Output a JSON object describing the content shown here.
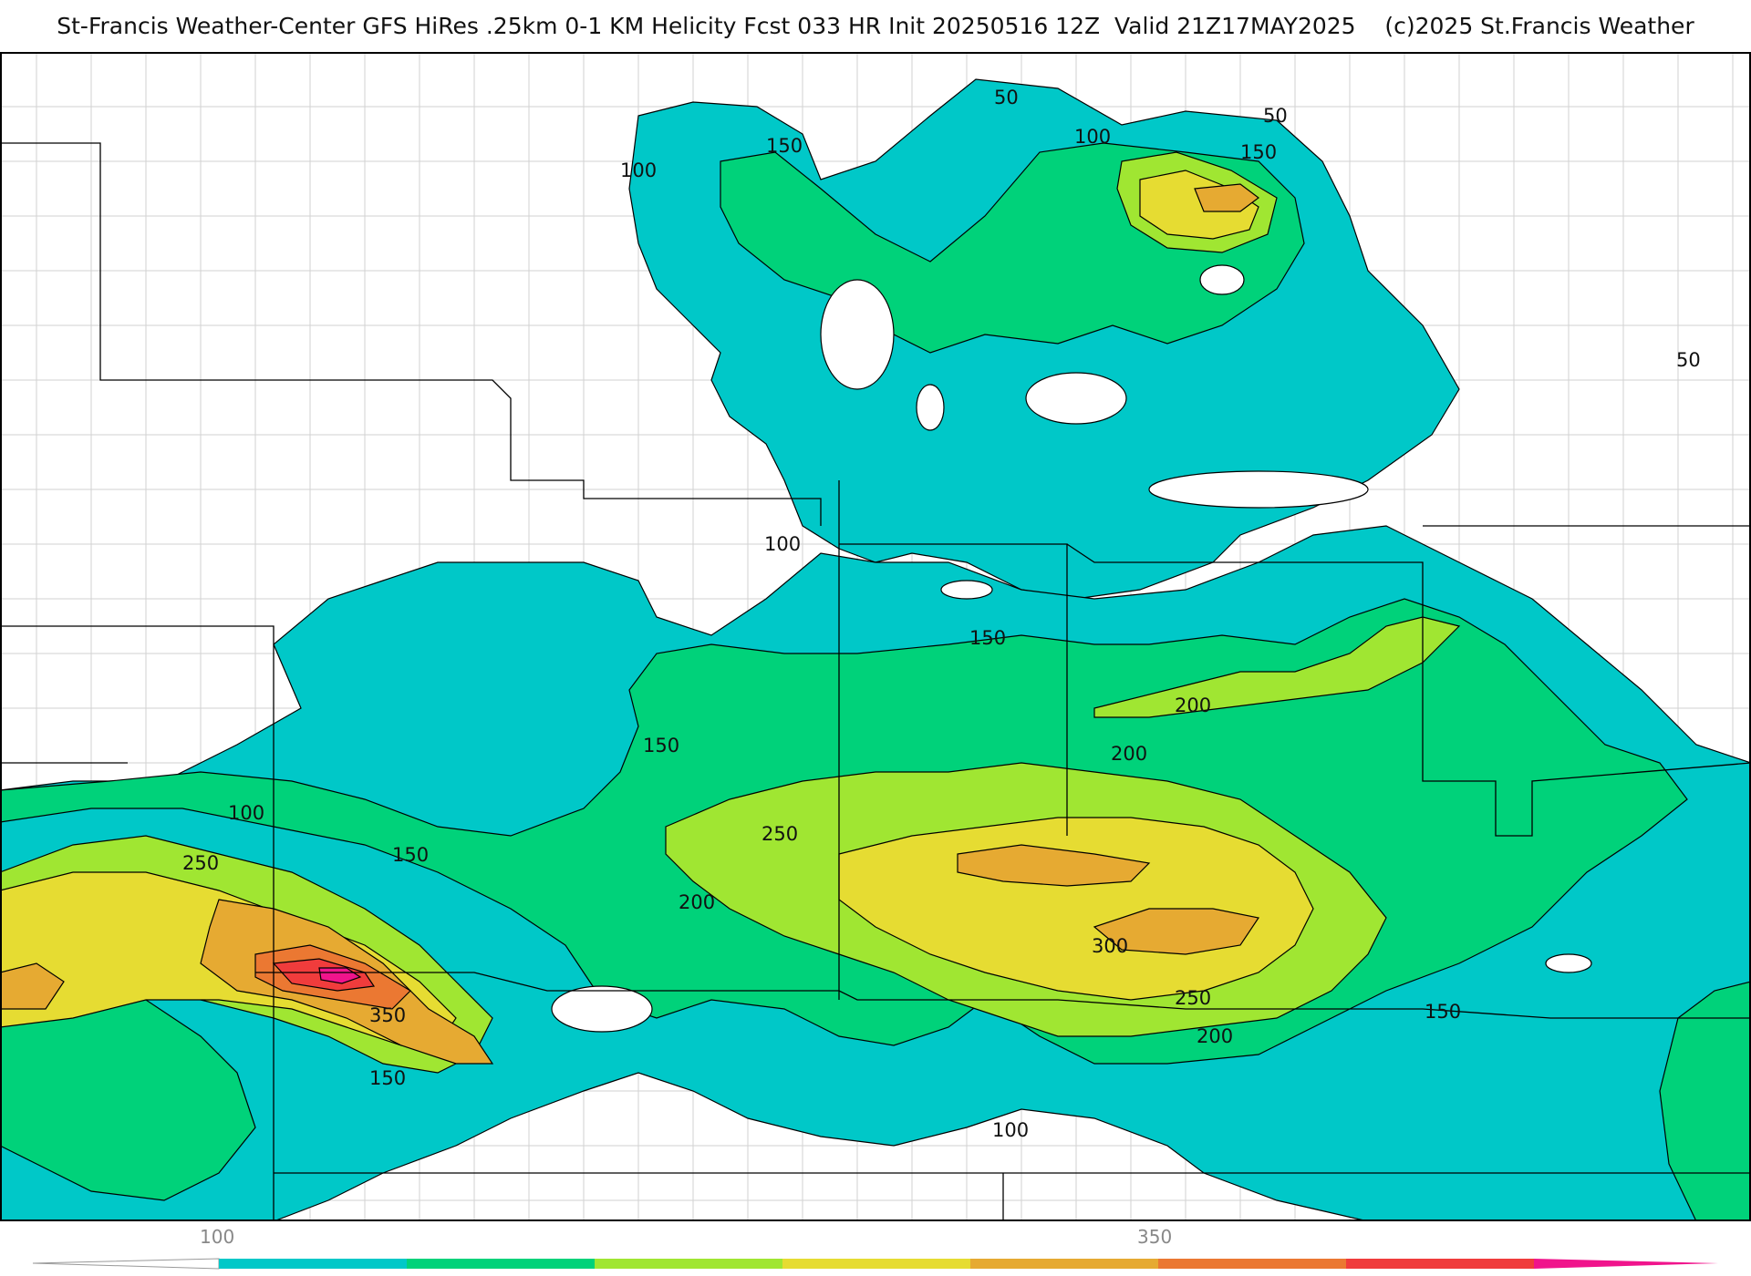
{
  "header": {
    "title": "St-Francis Weather-Center GFS HiRes .25km 0-1 KM Helicity Fcst 033 HR Init 20250516 12Z  Valid 21Z17MAY2025    (c)2025 St.Francis Weather"
  },
  "colors": {
    "band_100_150": "#00c8c8",
    "band_150_200": "#00d27a",
    "band_200_250": "#a0e632",
    "band_250_300": "#e6dc32",
    "band_300_350": "#e6aa32",
    "band_350_400": "#eb7832",
    "band_400_450": "#f03c3c",
    "band_450_500": "#f0148c"
  },
  "colorbar": {
    "tick_labels": [
      "100",
      "350"
    ]
  },
  "contour_labels": {
    "l50a": "50",
    "l50b": "50",
    "l50c": "50",
    "l100a": "100",
    "l100b": "100",
    "l100c": "100",
    "l100d": "100",
    "l100e": "100",
    "l150a": "150",
    "l150b": "150",
    "l150c": "150",
    "l150d": "150",
    "l150e": "150",
    "l150f": "150",
    "l150g": "150",
    "l200a": "200",
    "l200b": "200",
    "l200c": "200",
    "l200d": "200",
    "l250a": "250",
    "l250b": "250",
    "l250c": "250",
    "l300a": "300",
    "l350a": "350"
  }
}
